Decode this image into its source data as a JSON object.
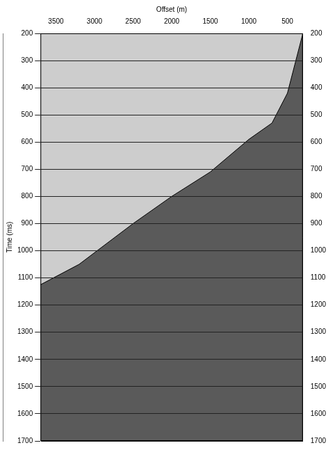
{
  "chart_data": {
    "type": "line",
    "x_label": "Offset (m)",
    "y_label": "Time (ms)",
    "x": [
      3700,
      3200,
      2500,
      2000,
      1500,
      1000,
      700,
      500,
      300
    ],
    "values": [
      1125,
      1050,
      900,
      800,
      710,
      590,
      530,
      420,
      200
    ],
    "color": "#000000",
    "xlim": [
      3700,
      300
    ],
    "xticks": [
      3500,
      3000,
      2500,
      2000,
      1500,
      1000,
      500
    ],
    "ylim": [
      200,
      1700
    ],
    "yticks": [
      200,
      300,
      400,
      500,
      600,
      700,
      800,
      900,
      1000,
      1100,
      1200,
      1300,
      1400,
      1500,
      1600,
      1700
    ],
    "y2lim": [
      200,
      1700
    ],
    "y2ticks": [
      200,
      300,
      400,
      500,
      600,
      700,
      800,
      900,
      1000,
      1100,
      1200,
      1300,
      1400,
      1500,
      1600,
      1700
    ],
    "grid": true
  }
}
